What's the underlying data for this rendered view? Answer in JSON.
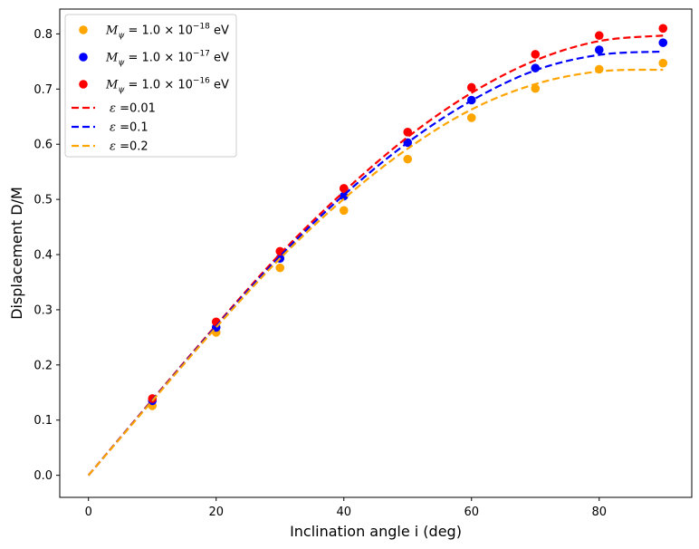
{
  "chart_data": {
    "type": "scatter",
    "xlabel": "Inclination angle i (deg)",
    "ylabel": "Displacement D/M",
    "xlim": [
      -4.5,
      94.5
    ],
    "ylim": [
      -0.04,
      0.845
    ],
    "xticks": [
      0,
      20,
      40,
      60,
      80
    ],
    "yticks": [
      0.0,
      0.1,
      0.2,
      0.3,
      0.4,
      0.5,
      0.6,
      0.7,
      0.8
    ],
    "xtick_labels": [
      "0",
      "20",
      "40",
      "60",
      "80"
    ],
    "ytick_labels": [
      "0.0",
      "0.1",
      "0.2",
      "0.3",
      "0.4",
      "0.5",
      "0.6",
      "0.7",
      "0.8"
    ],
    "grid": false,
    "legend_position": "top-left",
    "scatter_series": [
      {
        "name": "M_psi = 1.0x10^-18 eV",
        "label_base": "M",
        "label_sub": "ψ",
        "label_mid": " = 1.0 × 10",
        "label_exp": "−18",
        "label_unit": " eV",
        "color": "#FFA500",
        "x": [
          10,
          20,
          30,
          40,
          50,
          60,
          70,
          80,
          90
        ],
        "y": [
          0.126,
          0.259,
          0.376,
          0.48,
          0.573,
          0.648,
          0.701,
          0.736,
          0.747
        ]
      },
      {
        "name": "M_psi = 1.0x10^-17 eV",
        "label_base": "M",
        "label_sub": "ψ",
        "label_mid": " = 1.0 × 10",
        "label_exp": "−17",
        "label_unit": " eV",
        "color": "#0000FF",
        "x": [
          10,
          20,
          30,
          40,
          50,
          60,
          70,
          80,
          90
        ],
        "y": [
          0.135,
          0.268,
          0.393,
          0.506,
          0.603,
          0.68,
          0.738,
          0.771,
          0.784
        ]
      },
      {
        "name": "M_psi = 1.0x10^-16 eV",
        "label_base": "M",
        "label_sub": "ψ",
        "label_mid": " = 1.0 × 10",
        "label_exp": "−16",
        "label_unit": " eV",
        "color": "#FF0000",
        "x": [
          10,
          20,
          30,
          40,
          50,
          60,
          70,
          80,
          90
        ],
        "y": [
          0.139,
          0.278,
          0.406,
          0.52,
          0.622,
          0.703,
          0.763,
          0.797,
          0.81
        ]
      }
    ],
    "line_series": [
      {
        "name": "epsilon = 0.01",
        "label_sym": "ε",
        "label_val": " =0.01",
        "color": "#FF0000",
        "style": "dashed",
        "x": [
          0,
          10,
          20,
          30,
          40,
          50,
          60,
          70,
          80,
          90
        ],
        "y": [
          0.0,
          0.137,
          0.272,
          0.401,
          0.514,
          0.613,
          0.693,
          0.752,
          0.787,
          0.797
        ]
      },
      {
        "name": "epsilon = 0.1",
        "label_sym": "ε",
        "label_val": " =0.1",
        "color": "#0000FF",
        "style": "dashed",
        "x": [
          0,
          10,
          20,
          30,
          40,
          50,
          60,
          70,
          80,
          90
        ],
        "y": [
          0.0,
          0.136,
          0.27,
          0.397,
          0.508,
          0.603,
          0.679,
          0.734,
          0.762,
          0.768
        ]
      },
      {
        "name": "epsilon = 0.2",
        "label_sym": "ε",
        "label_val": " =0.2",
        "color": "#FFA500",
        "style": "dashed",
        "x": [
          0,
          10,
          20,
          30,
          40,
          50,
          60,
          70,
          80,
          90
        ],
        "y": [
          0.0,
          0.135,
          0.268,
          0.393,
          0.501,
          0.592,
          0.663,
          0.709,
          0.732,
          0.735
        ]
      }
    ]
  }
}
